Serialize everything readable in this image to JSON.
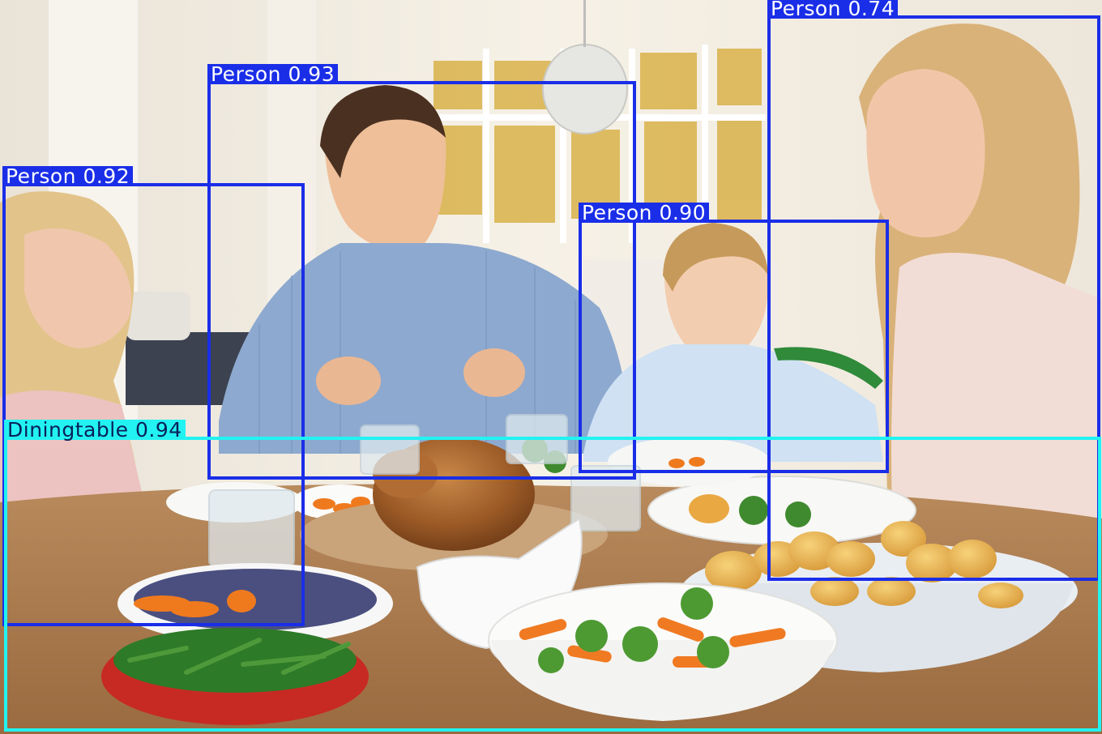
{
  "image": {
    "scene": "family dinner",
    "colors": {
      "person_box": "#1a2ee8",
      "table_box": "#22f2f2"
    }
  },
  "detections": [
    {
      "id": "person-girl",
      "label": "Person 0.92"
    },
    {
      "id": "person-man",
      "label": "Person 0.93"
    },
    {
      "id": "person-boy",
      "label": "Person 0.90"
    },
    {
      "id": "person-woman",
      "label": "Person 0.74"
    },
    {
      "id": "diningtable",
      "label": "Diningtable 0.94"
    }
  ]
}
